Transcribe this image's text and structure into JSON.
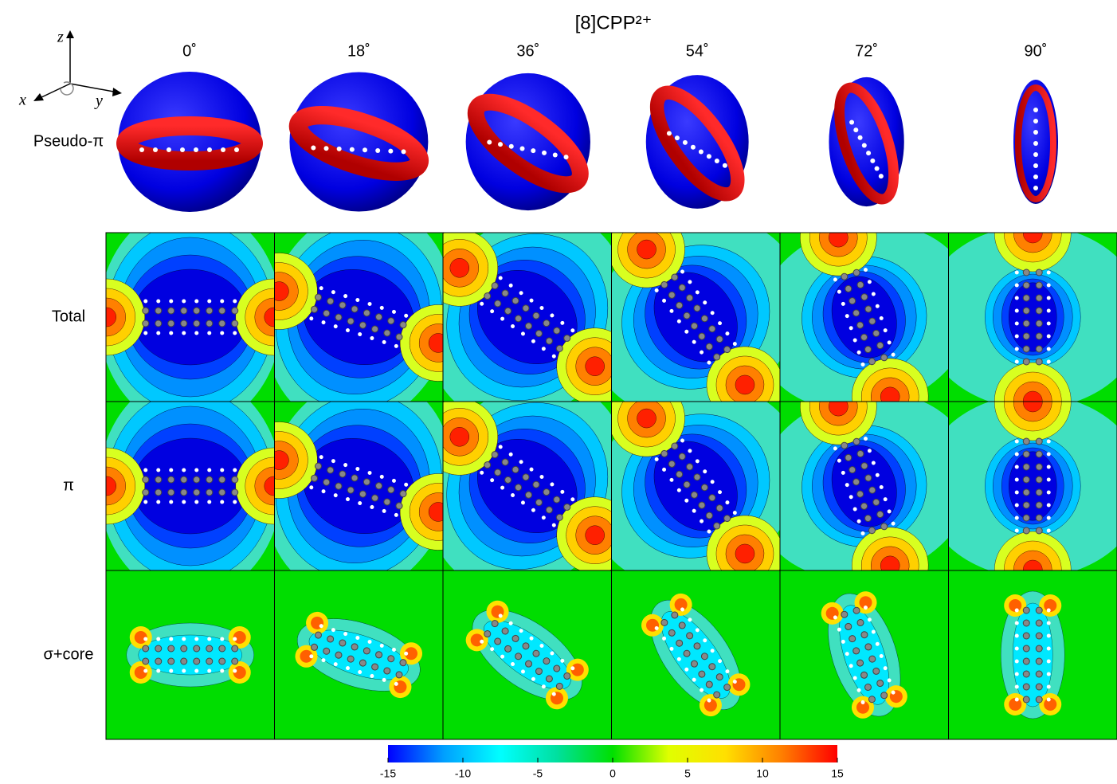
{
  "title": "[8]CPP²⁺",
  "axes_icon": {
    "z": "z",
    "x": "x",
    "y": "y"
  },
  "columns": [
    {
      "value": 0,
      "label": "0˚"
    },
    {
      "value": 18,
      "label": "18˚"
    },
    {
      "value": 36,
      "label": "36˚"
    },
    {
      "value": 54,
      "label": "54˚"
    },
    {
      "value": 72,
      "label": "72˚"
    },
    {
      "value": 90,
      "label": "90˚"
    }
  ],
  "rows": [
    "Pseudo-π",
    "Total",
    "π",
    "σ+core"
  ],
  "colorbar": {
    "lim": [
      -15,
      15
    ],
    "ticks": [
      -15,
      -10,
      -5,
      0,
      5,
      10,
      15
    ],
    "colors": [
      "#0000ff",
      "#00a0ff",
      "#00ffff",
      "#00e0a0",
      "#00e000",
      "#e0ff00",
      "#ffe000",
      "#ff8000",
      "#ff0000"
    ]
  }
}
